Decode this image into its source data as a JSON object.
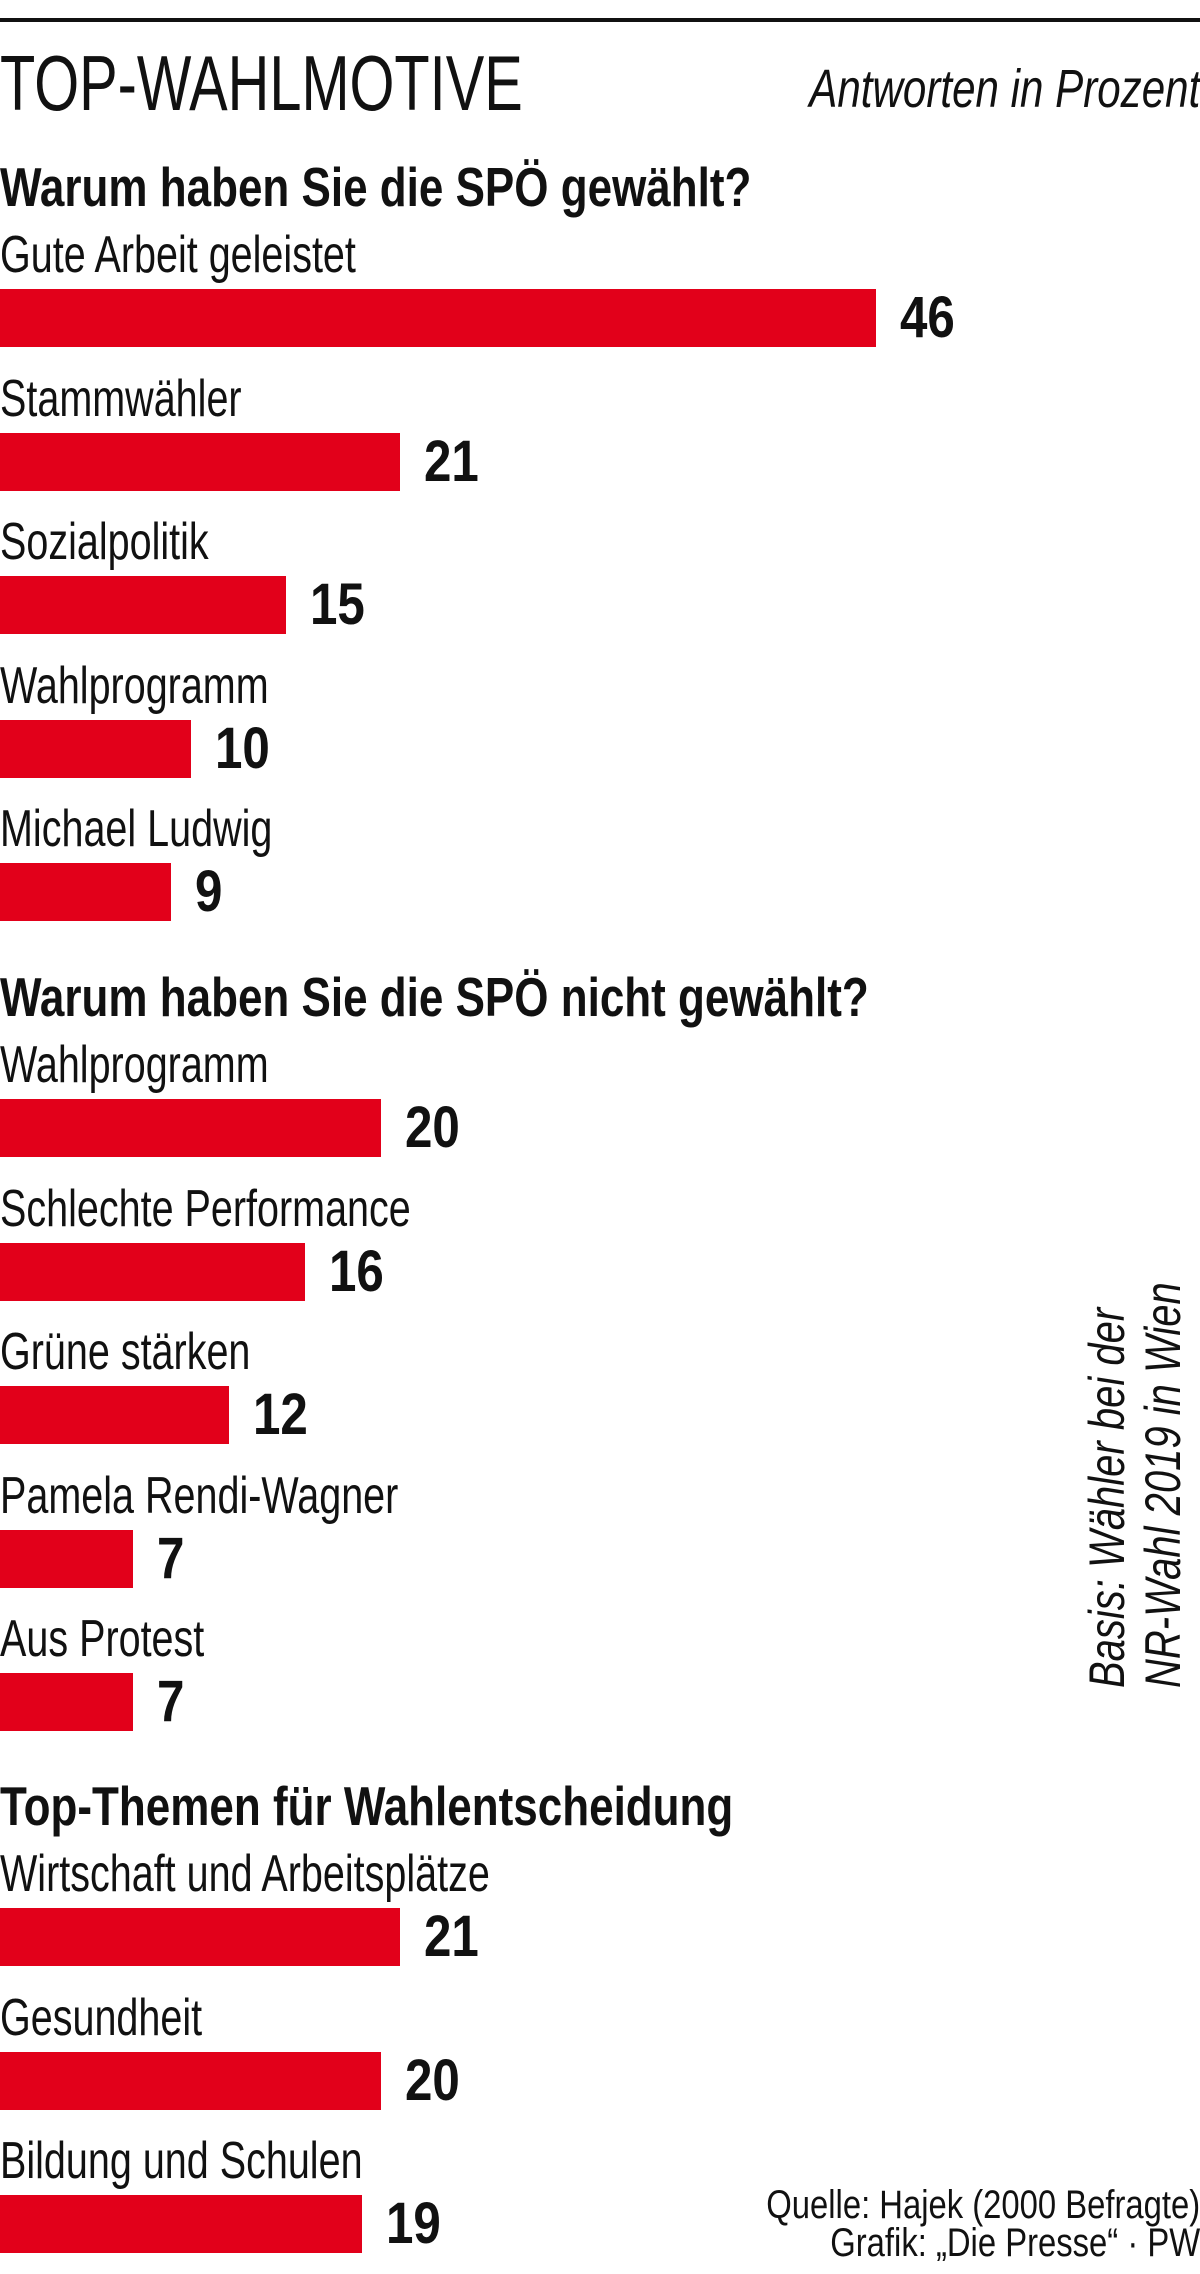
{
  "chart_data": {
    "type": "bar",
    "orientation": "horizontal",
    "title": "TOP-WAHLMOTIVE",
    "unit_note": "Antworten in Prozent",
    "basis_note": [
      "Basis: Wähler bei der",
      "NR-Wahl 2019 in Wien"
    ],
    "source": [
      "Quelle: Hajek (2000 Befragte)",
      "Grafik: „Die Presse“ · PW"
    ],
    "bar_color": "#e2001a",
    "sections": [
      {
        "heading": "Warum haben Sie die SPÖ gewählt?",
        "categories": [
          "Gute Arbeit geleistet",
          "Stammwähler",
          "Sozialpolitik",
          "Wahlprogramm",
          "Michael Ludwig"
        ],
        "values": [
          46,
          21,
          15,
          10,
          9
        ]
      },
      {
        "heading": "Warum haben Sie die SPÖ nicht gewählt?",
        "categories": [
          "Wahlprogramm",
          "Schlechte Performance",
          "Grüne stärken",
          "Pamela Rendi-Wagner",
          "Aus Protest"
        ],
        "values": [
          20,
          16,
          12,
          7,
          7
        ]
      },
      {
        "heading": "Top-Themen für Wahlentscheidung",
        "categories": [
          "Wirtschaft und Arbeitsplätze",
          "Gesundheit",
          "Bildung und Schulen"
        ],
        "values": [
          21,
          20,
          19
        ]
      }
    ]
  }
}
